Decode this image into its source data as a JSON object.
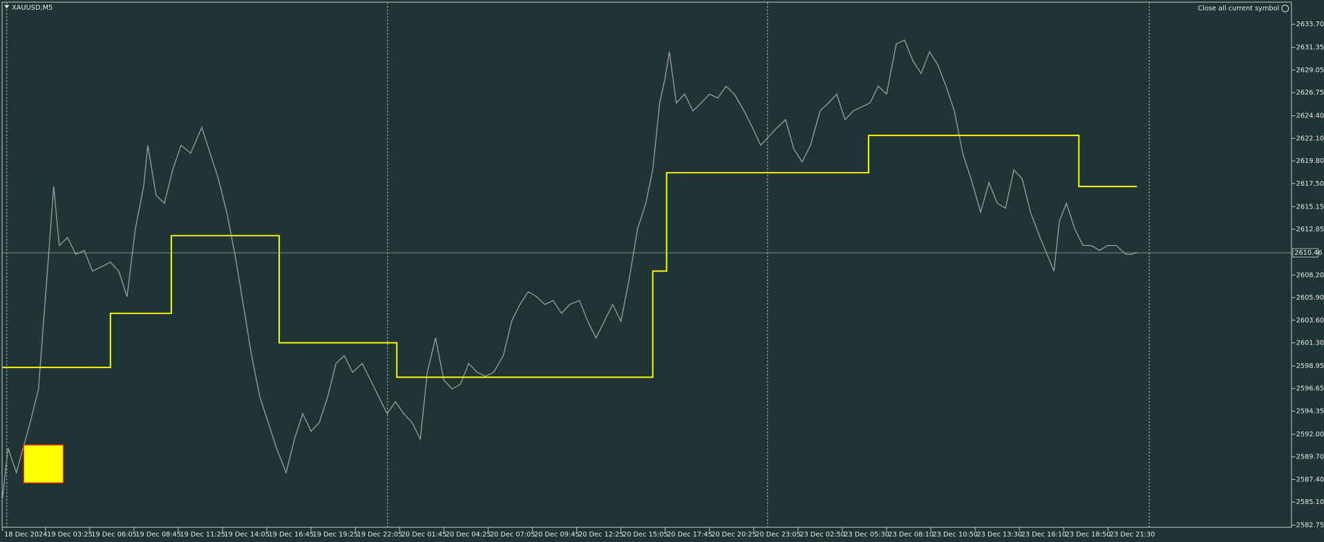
{
  "chart_data": {
    "type": "line",
    "title": "XAUUSD,M5",
    "button": "Close all current symbol",
    "current_price": 2610.46,
    "xlim": [
      0,
      932
    ],
    "ylim": [
      2582.5,
      2636.0
    ],
    "xticks": [
      {
        "value": 0,
        "label": "18 Dec 2024"
      },
      {
        "value": 31,
        "label": "19 Dec 03:25"
      },
      {
        "value": 63,
        "label": "19 Dec 06:05"
      },
      {
        "value": 95,
        "label": "19 Dec 08:45"
      },
      {
        "value": 127,
        "label": "19 Dec 11:25"
      },
      {
        "value": 159,
        "label": "19 Dec 14:05"
      },
      {
        "value": 191,
        "label": "19 Dec 16:45"
      },
      {
        "value": 223,
        "label": "19 Dec 19:25"
      },
      {
        "value": 255,
        "label": "19 Dec 22:05"
      },
      {
        "value": 287,
        "label": "20 Dec 01:45"
      },
      {
        "value": 319,
        "label": "20 Dec 04:25"
      },
      {
        "value": 351,
        "label": "20 Dec 07:05"
      },
      {
        "value": 383,
        "label": "20 Dec 09:45"
      },
      {
        "value": 415,
        "label": "20 Dec 12:25"
      },
      {
        "value": 447,
        "label": "20 Dec 15:05"
      },
      {
        "value": 479,
        "label": "20 Dec 17:45"
      },
      {
        "value": 511,
        "label": "20 Dec 20:25"
      },
      {
        "value": 543,
        "label": "20 Dec 23:05"
      },
      {
        "value": 575,
        "label": "23 Dec 02:50"
      },
      {
        "value": 607,
        "label": "23 Dec 05:30"
      },
      {
        "value": 639,
        "label": "23 Dec 08:10"
      },
      {
        "value": 671,
        "label": "23 Dec 10:50"
      },
      {
        "value": 703,
        "label": "23 Dec 13:30"
      },
      {
        "value": 735,
        "label": "23 Dec 16:10"
      },
      {
        "value": 767,
        "label": "23 Dec 18:50"
      },
      {
        "value": 799,
        "label": "23 Dec 21:30"
      }
    ],
    "yticks": [
      {
        "value": 2633.7,
        "label": "2633.70"
      },
      {
        "value": 2631.35,
        "label": "2631.35"
      },
      {
        "value": 2629.05,
        "label": "2629.05"
      },
      {
        "value": 2626.75,
        "label": "2626.75"
      },
      {
        "value": 2624.4,
        "label": "2624.40"
      },
      {
        "value": 2622.1,
        "label": "2622.10"
      },
      {
        "value": 2619.8,
        "label": "2619.80"
      },
      {
        "value": 2617.5,
        "label": "2617.50"
      },
      {
        "value": 2615.15,
        "label": "2615.15"
      },
      {
        "value": 2612.85,
        "label": "2612.85"
      },
      {
        "value": 2608.2,
        "label": "2608.20"
      },
      {
        "value": 2605.9,
        "label": "2605.90"
      },
      {
        "value": 2603.6,
        "label": "2603.60"
      },
      {
        "value": 2601.3,
        "label": "2601.30"
      },
      {
        "value": 2598.95,
        "label": "2598.95"
      },
      {
        "value": 2596.65,
        "label": "2596.65"
      },
      {
        "value": 2594.35,
        "label": "2594.35"
      },
      {
        "value": 2592.0,
        "label": "2592.00"
      },
      {
        "value": 2589.7,
        "label": "2589.70"
      },
      {
        "value": 2587.4,
        "label": "2587.40"
      },
      {
        "value": 2585.1,
        "label": "2585.10"
      },
      {
        "value": 2582.75,
        "label": "2582.75"
      }
    ],
    "series": [
      {
        "color": "#9c9c9c",
        "step": false,
        "x": [
          0,
          4,
          10,
          20,
          26,
          32,
          37,
          41,
          47,
          53,
          59,
          65,
          71,
          78,
          84,
          90,
          96,
          102,
          105,
          111,
          117,
          123,
          129,
          136,
          144,
          150,
          156,
          162,
          168,
          174,
          180,
          186,
          192,
          198,
          205,
          211,
          217,
          223,
          229,
          235,
          241,
          247,
          253,
          260,
          266,
          272,
          278,
          284,
          290,
          296,
          302,
          307,
          313,
          319,
          325,
          331,
          337,
          343,
          349,
          355,
          362,
          368,
          374,
          380,
          386,
          392,
          398,
          404,
          410,
          417,
          423,
          429,
          435,
          441,
          447,
          453,
          459,
          465,
          470,
          475,
          479,
          482,
          487,
          493,
          499,
          505,
          511,
          517,
          523,
          529,
          536,
          542,
          548,
          554,
          560,
          566,
          572,
          578,
          584,
          591,
          597,
          603,
          609,
          615,
          621,
          627,
          633,
          639,
          646,
          652,
          658,
          664,
          670,
          676,
          682,
          688,
          694,
          700,
          707,
          713,
          719,
          725,
          731,
          737,
          743,
          750,
          755,
          760,
          764,
          769,
          775,
          781,
          787,
          793,
          799,
          805,
          812,
          816,
          820
        ],
        "values": [
          2585.5,
          2590.6,
          2588.1,
          2593.2,
          2596.6,
          2607.8,
          2617.2,
          2611.2,
          2612.0,
          2610.3,
          2610.7,
          2608.6,
          2609.0,
          2609.5,
          2608.6,
          2606.0,
          2612.9,
          2617.2,
          2621.4,
          2616.3,
          2615.5,
          2618.9,
          2621.4,
          2620.6,
          2623.2,
          2620.6,
          2618.0,
          2614.6,
          2610.3,
          2605.2,
          2600.0,
          2595.8,
          2593.2,
          2590.6,
          2588.1,
          2591.5,
          2594.1,
          2592.3,
          2593.2,
          2595.8,
          2599.2,
          2600.0,
          2598.3,
          2599.2,
          2597.5,
          2595.8,
          2594.1,
          2595.3,
          2594.1,
          2593.2,
          2591.5,
          2598.3,
          2601.8,
          2597.5,
          2596.6,
          2597.1,
          2599.2,
          2598.3,
          2597.9,
          2598.3,
          2600.0,
          2603.5,
          2605.2,
          2606.5,
          2606.0,
          2605.2,
          2605.6,
          2604.3,
          2605.2,
          2605.6,
          2603.5,
          2601.8,
          2603.5,
          2605.2,
          2603.5,
          2607.8,
          2612.9,
          2615.5,
          2618.9,
          2625.7,
          2628.3,
          2630.9,
          2625.7,
          2626.6,
          2624.9,
          2625.7,
          2626.6,
          2626.2,
          2627.4,
          2626.6,
          2624.9,
          2623.2,
          2621.4,
          2622.3,
          2623.2,
          2624.0,
          2621.0,
          2619.7,
          2621.4,
          2624.9,
          2625.7,
          2626.6,
          2624.0,
          2624.9,
          2625.3,
          2625.7,
          2627.4,
          2626.6,
          2631.7,
          2632.1,
          2630.0,
          2628.7,
          2630.9,
          2629.6,
          2627.4,
          2624.9,
          2620.6,
          2618.0,
          2614.6,
          2617.6,
          2615.5,
          2615.0,
          2618.9,
          2618.0,
          2614.6,
          2612.0,
          2610.3,
          2608.6,
          2613.7,
          2615.5,
          2612.9,
          2611.2,
          2611.2,
          2610.7,
          2611.2,
          2611.2,
          2610.3,
          2610.3,
          2610.5
        ]
      },
      {
        "color": "#ffff00",
        "step": true,
        "x": [
          0,
          78,
          122,
          200,
          285,
          470,
          480,
          626,
          778,
          820
        ],
        "values": [
          2598.8,
          2604.3,
          2612.2,
          2601.3,
          2597.8,
          2608.6,
          2618.6,
          2622.4,
          2617.2,
          2617.2
        ]
      }
    ]
  }
}
